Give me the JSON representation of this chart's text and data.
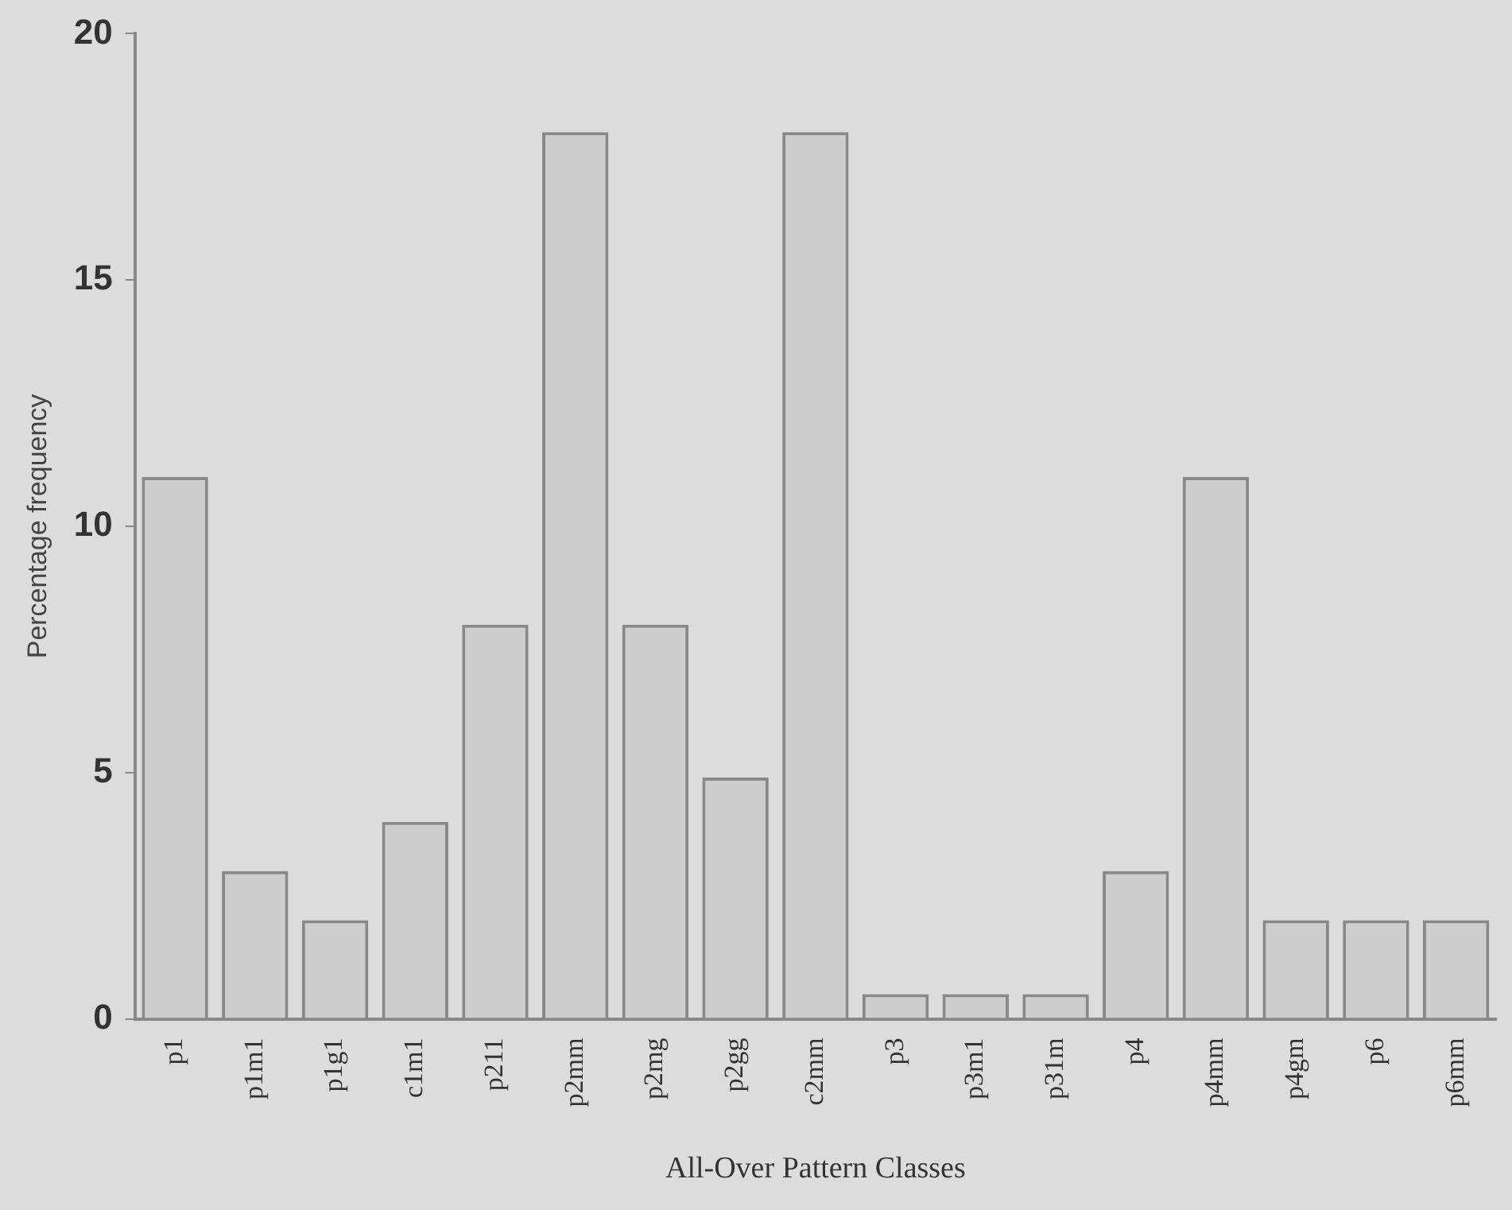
{
  "chart_data": {
    "type": "bar",
    "xlabel": "All-Over Pattern Classes",
    "ylabel": "Percentage frequency",
    "categories": [
      "p1",
      "p1m1",
      "p1g1",
      "c1m1",
      "p211",
      "p2mm",
      "p2mg",
      "p2gg",
      "c2mm",
      "p3",
      "p3m1",
      "p31m",
      "p4",
      "p4mm",
      "p4gm",
      "p6",
      "p6mm"
    ],
    "values": [
      11,
      3,
      2,
      4,
      8,
      18,
      8,
      4.9,
      18,
      0.5,
      0.5,
      0.5,
      3,
      11,
      2,
      2,
      2
    ],
    "color": "#cdcdcd",
    "ylim": [
      0,
      20
    ],
    "yticks": [
      0,
      5,
      10,
      15,
      20
    ],
    "grid": false,
    "legend": false
  }
}
